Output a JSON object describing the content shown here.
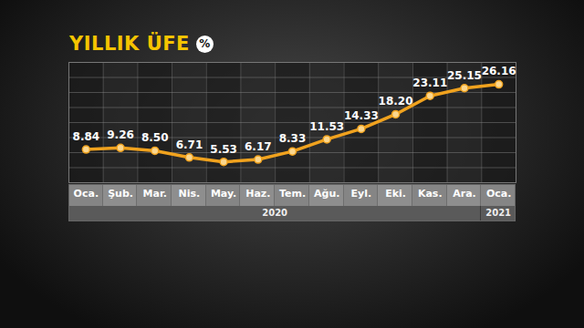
{
  "chart_data": {
    "type": "line",
    "title": "YILLIK ÜFE",
    "title_badge": "%",
    "categories": [
      "Oca.",
      "Şub.",
      "Mar.",
      "Nis.",
      "May.",
      "Haz.",
      "Tem.",
      "Ağu.",
      "Eyl.",
      "Eki.",
      "Kas.",
      "Ara.",
      "Oca."
    ],
    "x_groups": [
      {
        "label": "2020",
        "count": 12
      },
      {
        "label": "2021",
        "count": 1
      }
    ],
    "values": [
      8.84,
      9.26,
      8.5,
      6.71,
      5.53,
      6.17,
      8.33,
      11.53,
      14.33,
      18.2,
      23.11,
      25.15,
      26.16
    ],
    "value_labels": [
      "8.84",
      "9.26",
      "8.50",
      "6.71",
      "5.53",
      "6.17",
      "8.33",
      "11.53",
      "14.33",
      "18.20",
      "23.11",
      "25.15",
      "26.16"
    ],
    "color": "#f0a21e",
    "marker": "circle",
    "ylim": [
      0,
      32
    ],
    "yticks": [
      0,
      4,
      8,
      12,
      16,
      20,
      24,
      28,
      32
    ],
    "grid": true,
    "data_labels": true,
    "tick_labels": "x"
  }
}
